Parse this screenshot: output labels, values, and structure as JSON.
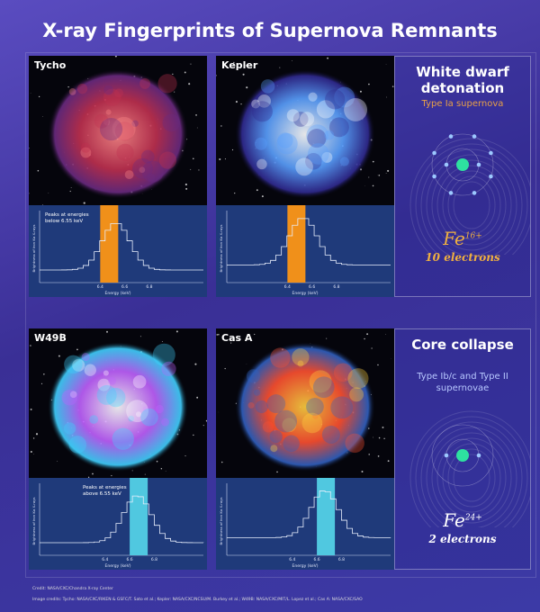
{
  "title": "X-ray Fingerprints of Supernova Remnants",
  "rows": [
    {
      "panels": [
        {
          "name": "Tycho",
          "chart": {
            "note": "Peaks at energies below 6.55 keV",
            "y_label": "Brightness of iron Kα X-rays",
            "x_label": "Energy (keV)",
            "ticks": [
              "6.4",
              "6.6",
              "6.8"
            ]
          }
        },
        {
          "name": "Kepler",
          "chart": {
            "y_label": "Brightness of iron Kα X-rays",
            "x_label": "Energy (keV)",
            "ticks": [
              "6.4",
              "6.6",
              "6.8"
            ]
          }
        }
      ],
      "info": {
        "heading": "White dwarf detonation",
        "subheading": "Type Ia supernova",
        "ion": "Fe",
        "charge": "16+",
        "electrons": "10 electrons"
      }
    },
    {
      "panels": [
        {
          "name": "W49B",
          "chart": {
            "note": "Peaks at energies above 6.55 keV",
            "y_label": "Brightness of iron Kα X-rays",
            "x_label": "Energy (keV)",
            "ticks": [
              "6.4",
              "6.6",
              "6.8"
            ]
          }
        },
        {
          "name": "Cas A",
          "chart": {
            "y_label": "Brightness of iron Kα X-rays",
            "x_label": "Energy (keV)",
            "ticks": [
              "6.4",
              "6.6",
              "6.8"
            ]
          }
        }
      ],
      "info": {
        "heading": "Core collapse",
        "subheading": "Type Ib/c and Type II supernovae",
        "ion": "Fe",
        "charge": "24+",
        "electrons": "2 electrons"
      }
    }
  ],
  "credits": [
    "Credit: NASA/CXC/Chandra X-ray Center",
    "Image credits: Tycho: NASA/CXC/RIKEN & GSFC/T. Sato et al.; Kepler: NASA/CXC/NCSU/M. Burkey et al.; W49B: NASA/CXC/MIT/L. Lopez et al.; Cas A: NASA/CXC/SAO"
  ]
}
